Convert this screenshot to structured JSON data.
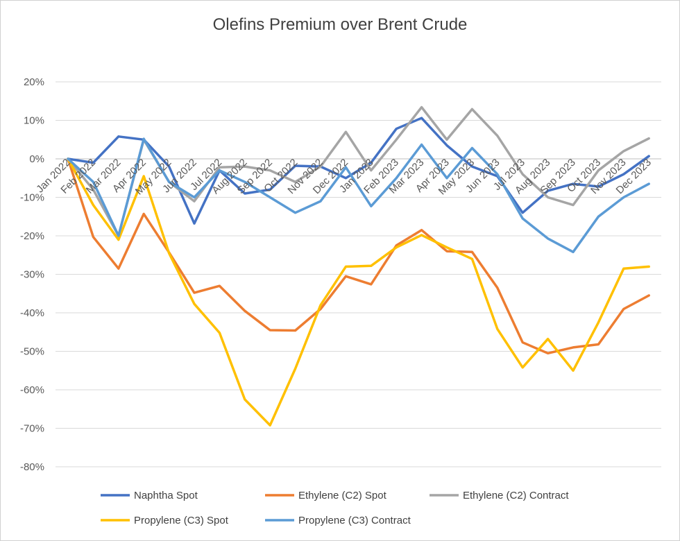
{
  "chart_data": {
    "type": "line",
    "title": "Olefins Premium over Brent Crude",
    "xlabel": "",
    "ylabel": "",
    "ylim": [
      -0.8,
      0.2
    ],
    "yticks": [
      0.2,
      0.1,
      0,
      -0.1,
      -0.2,
      -0.3,
      -0.4,
      -0.5,
      -0.6,
      -0.7,
      -0.8
    ],
    "ytick_labels": [
      "20%",
      "10%",
      "0%",
      "-10%",
      "-20%",
      "-30%",
      "-40%",
      "-50%",
      "-60%",
      "-70%",
      "-80%"
    ],
    "grid": true,
    "legend_position": "bottom",
    "categories": [
      "Jan 2022",
      "Feb 2022",
      "Mar 2022",
      "Apr 2022",
      "May 2022",
      "Jun 2022",
      "Jul 2022",
      "Aug 2022",
      "Sep 2022",
      "Oct 2022",
      "Nov 2022",
      "Dec 2022",
      "Jan 2023",
      "Feb 2023",
      "Mar 2023",
      "Apr 2023",
      "May 2023",
      "Jun 2023",
      "Jul 2023",
      "Aug 2023",
      "Sep 2023",
      "Oct 2023",
      "Nov 2023",
      "Dec 2023"
    ],
    "series": [
      {
        "name": "Naphtha Spot",
        "color": "#4472C4",
        "values": [
          0,
          -0.01,
          0.058,
          0.05,
          -0.02,
          -0.168,
          -0.03,
          -0.09,
          -0.08,
          -0.018,
          -0.02,
          -0.05,
          -0.01,
          0.078,
          0.106,
          0.035,
          -0.02,
          -0.045,
          -0.14,
          -0.083,
          -0.065,
          -0.072,
          -0.04,
          0.007
        ]
      },
      {
        "name": "Ethylene (C2) Spot",
        "color": "#ED7D31",
        "values": [
          0,
          -0.203,
          -0.285,
          -0.143,
          -0.243,
          -0.348,
          -0.33,
          -0.395,
          -0.445,
          -0.446,
          -0.39,
          -0.305,
          -0.326,
          -0.225,
          -0.185,
          -0.24,
          -0.242,
          -0.335,
          -0.477,
          -0.505,
          -0.49,
          -0.482,
          -0.39,
          -0.355
        ]
      },
      {
        "name": "Ethylene (C2) Contract",
        "color": "#A5A5A5",
        "values": [
          0,
          -0.08,
          -0.2,
          0.05,
          -0.06,
          -0.11,
          -0.022,
          -0.02,
          -0.03,
          -0.06,
          -0.02,
          0.07,
          -0.03,
          0.05,
          0.134,
          0.05,
          0.129,
          0.06,
          -0.04,
          -0.1,
          -0.12,
          -0.03,
          0.02,
          0.053
        ]
      },
      {
        "name": "Propylene (C3) Spot",
        "color": "#FFC000",
        "values": [
          0,
          -0.12,
          -0.21,
          -0.045,
          -0.245,
          -0.377,
          -0.452,
          -0.625,
          -0.692,
          -0.545,
          -0.38,
          -0.28,
          -0.278,
          -0.23,
          -0.198,
          -0.23,
          -0.26,
          -0.442,
          -0.542,
          -0.468,
          -0.55,
          -0.425,
          -0.285,
          -0.28
        ]
      },
      {
        "name": "Propylene (C3) Contract",
        "color": "#5B9BD5",
        "values": [
          0,
          -0.06,
          -0.2,
          0.052,
          -0.06,
          -0.1,
          -0.03,
          -0.06,
          -0.1,
          -0.14,
          -0.11,
          -0.022,
          -0.123,
          -0.05,
          0.037,
          -0.05,
          0.028,
          -0.04,
          -0.155,
          -0.207,
          -0.242,
          -0.15,
          -0.1,
          -0.065
        ]
      }
    ]
  }
}
